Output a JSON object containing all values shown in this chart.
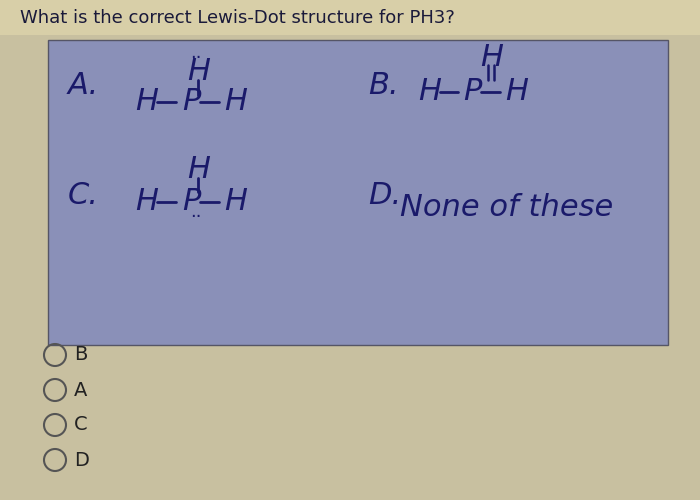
{
  "title": "What is the correct Lewis-Dot structure for PH3?",
  "title_fontsize": 13,
  "title_color": "#1a1a3a",
  "title_bg": "#d8cfa8",
  "box_bg": "#8a90b8",
  "overall_bg": "#c8c0a0",
  "handwriting_color": "#1a1a6a",
  "radio_options": [
    "B",
    "A",
    "C",
    "D"
  ]
}
